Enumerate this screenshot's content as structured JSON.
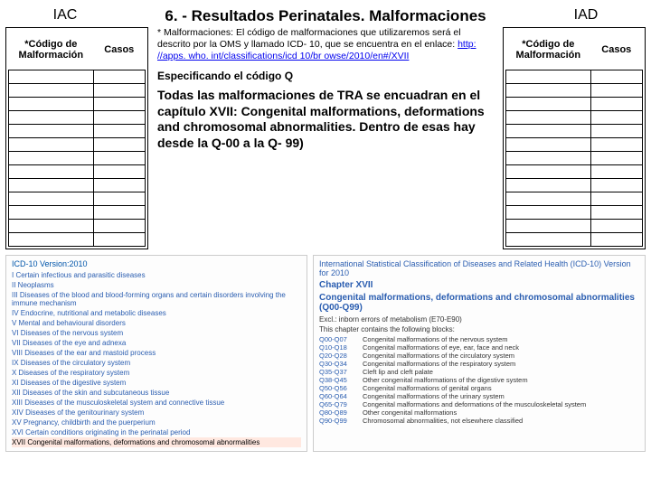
{
  "header": {
    "iac": "IAC",
    "title": "6. - Resultados Perinatales. Malformaciones",
    "iad": "IAD"
  },
  "table_headers": {
    "codigo": "*Código de Malformación",
    "casos": "Casos"
  },
  "row_count": 13,
  "center": {
    "note_prefix": "* Malformaciones: El código de malformaciones que utilizaremos será el descrito por la OMS y llamado ICD- 10, que se encuentra en el enlace: ",
    "note_link": "http: //apps. who. int/classifications/icd 10/br owse/2010/en#/XVII",
    "spec": "Especificando el código Q",
    "body": "Todas las malformaciones de TRA se encuadran en el capítulo XVII: Congenital malformations, deformations and chromosomal abnormalities. Dentro de esas hay desde la Q-00 a la Q- 99)"
  },
  "icd_left": {
    "version": "ICD-10 Version:2010",
    "items": [
      "I Certain infectious and parasitic diseases",
      "II Neoplasms",
      "III Diseases of the blood and blood-forming organs and certain disorders involving the immune mechanism",
      "IV Endocrine, nutritional and metabolic diseases",
      "V Mental and behavioural disorders",
      "VI Diseases of the nervous system",
      "VII Diseases of the eye and adnexa",
      "VIII Diseases of the ear and mastoid process",
      "IX Diseases of the circulatory system",
      "X Diseases of the respiratory system",
      "XI Diseases of the digestive system",
      "XII Diseases of the skin and subcutaneous tissue",
      "XIII Diseases of the musculoskeletal system and connective tissue",
      "XIV Diseases of the genitourinary system",
      "XV Pregnancy, childbirth and the puerperium",
      "XVI Certain conditions originating in the perinatal period"
    ],
    "highlight": "XVII Congenital malformations, deformations and chromosomal abnormalities"
  },
  "icd_right": {
    "hdr1": "International Statistical Classification of Diseases and Related Health (ICD-10) Version for 2010",
    "hdr2": "Chapter XVII",
    "hdr3": "Congenital malformations, deformations and chromosomal abnormalities (Q00-Q99)",
    "excl": "Excl.: inborn errors of metabolism (E70-E90)",
    "contains": "This chapter contains the following blocks:",
    "blocks": [
      {
        "code": "Q00-Q07",
        "text": "Congenital malformations of the nervous system"
      },
      {
        "code": "Q10-Q18",
        "text": "Congenital malformations of eye, ear, face and neck"
      },
      {
        "code": "Q20-Q28",
        "text": "Congenital malformations of the circulatory system"
      },
      {
        "code": "Q30-Q34",
        "text": "Congenital malformations of the respiratory system"
      },
      {
        "code": "Q35-Q37",
        "text": "Cleft lip and cleft palate"
      },
      {
        "code": "Q38-Q45",
        "text": "Other congenital malformations of the digestive system"
      },
      {
        "code": "Q50-Q56",
        "text": "Congenital malformations of genital organs"
      },
      {
        "code": "Q60-Q64",
        "text": "Congenital malformations of the urinary system"
      },
      {
        "code": "Q65-Q79",
        "text": "Congenital malformations and deformations of the musculoskeletal system"
      },
      {
        "code": "Q80-Q89",
        "text": "Other congenital malformations"
      },
      {
        "code": "Q90-Q99",
        "text": "Chromosomal abnormalities, not elsewhere classified"
      }
    ]
  }
}
